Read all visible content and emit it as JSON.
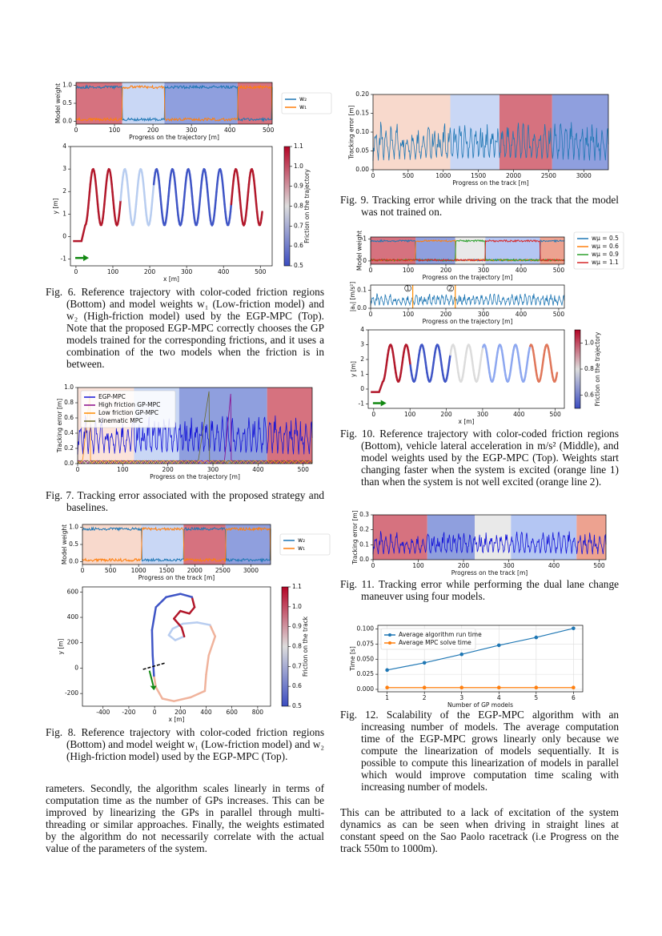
{
  "figures": [
    {
      "caption": "Fig. 6. Reference trajectory with color-coded friction regions (Bottom) and model weights w₁ (Low-friction model) and w₂ (High-friction model) used by the EGP-MPC (Top). Note that the proposed EGP-MPC correctly chooses the GP models trained for the corresponding frictions, and it uses a combination of the two models when the friction is in between.",
      "panels": [
        {
          "kind": "weights",
          "xlabel": "Progress on the trajectory [m]",
          "ylabel": "Model weight",
          "xlim": [
            0,
            510
          ],
          "ylim": [
            -0.08,
            1.08
          ],
          "xticks": [
            0,
            100,
            200,
            300,
            400,
            500
          ],
          "yticks": [
            {
              "value": 0,
              "label": "0.0"
            },
            0.5,
            {
              "value": 1,
              "label": "1.0"
            }
          ],
          "regions": [
            {
              "range": [
                0,
                120
              ],
              "color": "#d6727f"
            },
            {
              "range": [
                120,
                230
              ],
              "color": "#c9d7f5"
            },
            {
              "range": [
                230,
                420
              ],
              "color": "#8f9fde"
            },
            {
              "range": [
                420,
                510
              ],
              "color": "#d6727f"
            }
          ],
          "legend": "outside-right",
          "series": [
            {
              "name": "w₂",
              "color": "#1f77b4"
            },
            {
              "name": "w₁",
              "color": "#ff7f0e"
            }
          ]
        },
        {
          "kind": "trajectory",
          "xlabel": "x [m]",
          "ylabel": "y [m]",
          "xlim": [
            -15,
            532
          ],
          "ylim": [
            -1.3,
            4
          ],
          "xticks": [
            0,
            100,
            200,
            300,
            400,
            500
          ],
          "yticks": [
            -1,
            0,
            1,
            2,
            3,
            4
          ],
          "friction_segments": [
            {
              "range": [
                0,
                120
              ],
              "color": "#b2182b"
            },
            {
              "range": [
                120,
                210
              ],
              "color": "#b8cdf0"
            },
            {
              "range": [
                210,
                420
              ],
              "color": "#3f55c6"
            },
            {
              "range": [
                420,
                532
              ],
              "color": "#b2182b"
            }
          ],
          "colorbar": {
            "label": "Friction on the trajectory",
            "lim": [
              0.5,
              1.1
            ],
            "ticks": [
              0.5,
              0.6,
              0.7,
              0.8,
              0.9,
              {
                "value": 1,
                "label": "1.0"
              },
              1.1
            ]
          }
        }
      ]
    },
    {
      "caption": "Fig. 7. Tracking error associated with the proposed strategy and baselines.",
      "panels": [
        {
          "kind": "error",
          "xlabel": "Progress on the trajectory [m]",
          "ylabel": "Tracking error [m]",
          "xlim": [
            0,
            520
          ],
          "ylim": [
            0,
            1
          ],
          "xticks": [
            0,
            100,
            200,
            300,
            400,
            500
          ],
          "yticks": [
            {
              "value": 0,
              "label": "0.0"
            },
            0.2,
            0.4,
            0.6,
            0.8,
            {
              "value": 1,
              "label": "1.0"
            }
          ],
          "regions": [
            {
              "range": [
                0,
                125
              ],
              "color": "#fbe3da"
            },
            {
              "range": [
                125,
                225
              ],
              "color": "#c9d7f5"
            },
            {
              "range": [
                225,
                420
              ],
              "color": "#8f9fde"
            },
            {
              "range": [
                420,
                520
              ],
              "color": "#d6727f"
            }
          ],
          "legend": "upper-left",
          "series": [
            {
              "name": "EGP-MPC",
              "color": "#1414d8"
            },
            {
              "name": "High friction GP-MPC",
              "color": "#8b0a8b"
            },
            {
              "name": "Low friction GP-MPC",
              "color": "#ff8c00"
            },
            {
              "name": "kinematic MPC",
              "color": "#6b6b2a"
            }
          ]
        }
      ]
    },
    {
      "caption": "Fig. 8. Reference trajectory with color-coded friction regions (Bottom) and model weight w₁ (Low-friction model) and w₂ (High-friction model) used by the EGP-MPC (Top).",
      "panels": [
        {
          "kind": "weights",
          "xlabel": "Progress on the track [m]",
          "ylabel": "Model weight",
          "xlim": [
            0,
            3350
          ],
          "ylim": [
            -0.08,
            1.08
          ],
          "xticks": [
            0,
            500,
            1000,
            1500,
            2000,
            2500,
            3000
          ],
          "yticks": [
            {
              "value": 0,
              "label": "0.0"
            },
            0.5,
            {
              "value": 1,
              "label": "1.0"
            }
          ],
          "regions": [
            {
              "range": [
                0,
                1050
              ],
              "color": "#f8d9cc"
            },
            {
              "range": [
                1050,
                1800
              ],
              "color": "#c9d7f5"
            },
            {
              "range": [
                1800,
                2550
              ],
              "color": "#d6727f"
            },
            {
              "range": [
                2550,
                3350
              ],
              "color": "#8f9fde"
            }
          ],
          "legend": "outside-right",
          "series": [
            {
              "name": "w₂",
              "color": "#1f77b4"
            },
            {
              "name": "w₁",
              "color": "#ff7f0e"
            }
          ]
        },
        {
          "kind": "track",
          "xlabel": "x [m]",
          "ylabel": "y [m]",
          "xlim": [
            -560,
            900
          ],
          "ylim": [
            -300,
            640
          ],
          "xticks": [
            -400,
            -200,
            0,
            200,
            400,
            600,
            800
          ],
          "yticks": [
            -200,
            0,
            200,
            400,
            600
          ],
          "friction_segments": [
            {
              "range": [
                0,
                1050
              ],
              "color": "#f0b39c"
            },
            {
              "range": [
                1050,
                1800
              ],
              "color": "#b8cdf0"
            },
            {
              "range": [
                1800,
                2550
              ],
              "color": "#b2182b"
            },
            {
              "range": [
                2550,
                3350
              ],
              "color": "#3f55c6"
            }
          ],
          "colorbar": {
            "label": "Friction on the track",
            "lim": [
              0.5,
              1.1
            ],
            "ticks": [
              0.5,
              0.6,
              0.7,
              0.8,
              0.9,
              {
                "value": 1,
                "label": "1.0"
              },
              1.1
            ]
          }
        }
      ]
    },
    {
      "caption": "Fig. 9. Tracking error while driving on the track that the model was not trained on.",
      "panels": [
        {
          "kind": "error",
          "xlabel": "Progress on the track [m]",
          "ylabel": "Tracking error [m]",
          "xlim": [
            0,
            3350
          ],
          "ylim": [
            0,
            0.2
          ],
          "xticks": [
            0,
            500,
            1000,
            1500,
            2000,
            2500,
            3000
          ],
          "yticks": [
            {
              "value": 0,
              "label": "0.00"
            },
            0.05,
            {
              "value": 0.1,
              "label": "0.10"
            },
            0.15,
            {
              "value": 0.2,
              "label": "0.20"
            }
          ],
          "regions": [
            {
              "range": [
                0,
                1100
              ],
              "color": "#f8d9cc"
            },
            {
              "range": [
                1100,
                1800
              ],
              "color": "#c9d7f5"
            },
            {
              "range": [
                1800,
                2550
              ],
              "color": "#d6727f"
            },
            {
              "range": [
                2550,
                3350
              ],
              "color": "#8f9fde"
            }
          ],
          "color": "#1f77b4"
        }
      ]
    },
    {
      "caption": "Fig. 10. Reference trajectory with color-coded friction regions (Bottom), vehicle lateral acceleration in m/s² (Middle), and model weights used by the EGP-MPC (Top). Weights start changing faster when the system is excited (orange line 1) than when the system is not well excited (orange line 2).",
      "panels": [
        {
          "kind": "weights",
          "xlabel": "Progress on the trajectory [m]",
          "ylabel": "Model weight",
          "xlim": [
            0,
            515
          ],
          "ylim": [
            -0.15,
            1.1
          ],
          "xticks": [
            0,
            100,
            200,
            300,
            400,
            500
          ],
          "yticks": [
            0,
            1
          ],
          "regions": [
            {
              "range": [
                0,
                120
              ],
              "color": "#d6727f"
            },
            {
              "range": [
                120,
                225
              ],
              "color": "#8f9fde"
            },
            {
              "range": [
                225,
                305
              ],
              "color": "#e9e9e9"
            },
            {
              "range": [
                305,
                450
              ],
              "color": "#b4c6f3"
            },
            {
              "range": [
                450,
                515
              ],
              "color": "#eda290"
            }
          ],
          "legend": "outside-right",
          "series": [
            {
              "name": "wμ = 0.5",
              "color": "#1f77b4"
            },
            {
              "name": "wμ = 0.6",
              "color": "#ff7f0e"
            },
            {
              "name": "wμ = 0.9",
              "color": "#2ca02c"
            },
            {
              "name": "wμ = 1.1",
              "color": "#d62728"
            }
          ]
        },
        {
          "kind": "error",
          "xlabel": "Progress on the trajectory [m]",
          "ylabel": "|aᵧ| [m/s²]",
          "xlim": [
            0,
            515
          ],
          "ylim": [
            0,
            0.13
          ],
          "xticks": [
            0,
            100,
            200,
            300,
            400,
            500
          ],
          "yticks": [
            {
              "value": 0,
              "label": "0.0"
            },
            0.1
          ],
          "color": "#1f77b4",
          "markers": [
            {
              "x": 112,
              "label": "1"
            },
            {
              "x": 225,
              "label": "2"
            }
          ]
        },
        {
          "kind": "trajectory",
          "xlabel": "x [m]",
          "ylabel": "y [m]",
          "xlim": [
            -15,
            525
          ],
          "ylim": [
            -1.3,
            4
          ],
          "xticks": [
            0,
            100,
            200,
            300,
            400,
            500
          ],
          "yticks": [
            -1,
            0,
            1,
            2,
            3,
            4
          ],
          "friction_segments": [
            {
              "range": [
                0,
                100
              ],
              "color": "#b2182b"
            },
            {
              "range": [
                100,
                210
              ],
              "color": "#3f55c6"
            },
            {
              "range": [
                210,
                300
              ],
              "color": "#dcdcdc"
            },
            {
              "range": [
                300,
                430
              ],
              "color": "#8ea8f0"
            },
            {
              "range": [
                430,
                525
              ],
              "color": "#e0775a"
            }
          ],
          "colorbar": {
            "label": "Friction on the trajectory",
            "lim": [
              0.5,
              1.1
            ],
            "ticks": [
              0.6,
              0.8,
              {
                "value": 1,
                "label": "1.0"
              }
            ]
          }
        }
      ]
    },
    {
      "caption": "Fig. 11. Tracking error while performing the dual lane change maneuver using four models.",
      "panels": [
        {
          "kind": "error",
          "xlabel": "Progress on the track [m]",
          "ylabel": "Tracking error [m]",
          "xlim": [
            0,
            515
          ],
          "ylim": [
            0,
            0.3
          ],
          "xticks": [
            0,
            100,
            200,
            300,
            400,
            500
          ],
          "yticks": [
            {
              "value": 0,
              "label": "0.0"
            },
            0.1,
            0.2,
            0.3
          ],
          "regions": [
            {
              "range": [
                0,
                120
              ],
              "color": "#d6727f"
            },
            {
              "range": [
                120,
                225
              ],
              "color": "#8f9fde"
            },
            {
              "range": [
                225,
                305
              ],
              "color": "#e9e9e9"
            },
            {
              "range": [
                305,
                450
              ],
              "color": "#b4c6f3"
            },
            {
              "range": [
                450,
                515
              ],
              "color": "#eda290"
            }
          ],
          "color": "#1414d8"
        }
      ]
    },
    {
      "caption": "Fig. 12. Scalability of the EGP-MPC algorithm with an increasing number of models. The average computation time of the EGP-MPC grows linearly only because we compute the linearization of models sequentially. It is possible to compute this linearization of models in parallel which would improve computation time scaling with increasing number of models.",
      "panels": [
        {
          "kind": "line",
          "xlabel": "Number of GP models",
          "ylabel": "Time [s]",
          "xlim": [
            0.75,
            6.25
          ],
          "ylim": [
            -0.004,
            0.106
          ],
          "xticks": [
            1,
            2,
            3,
            4,
            5,
            6
          ],
          "yticks": [
            {
              "value": 0,
              "label": "0.000"
            },
            0.025,
            {
              "value": 0.05,
              "label": "0.050"
            },
            0.075,
            {
              "value": 0.1,
              "label": "0.100"
            }
          ],
          "grid": true,
          "legend": "upper-left",
          "x": [
            1,
            2,
            3,
            4,
            5,
            6
          ],
          "series": [
            {
              "name": "Average algorithm run time",
              "color": "#1f77b4",
              "values": [
                0.032,
                0.044,
                0.058,
                0.073,
                0.086,
                0.101
              ]
            },
            {
              "name": "Average MPC solve time",
              "color": "#ff7f0e",
              "values": [
                0.003,
                0.003,
                0.003,
                0.003,
                0.003,
                0.003
              ]
            }
          ]
        }
      ]
    }
  ],
  "body": {
    "left": "rameters. Secondly, the algorithm scales linearly in terms of computation time as the number of GPs increases. This can be improved by linearizing the GPs in parallel through multi-threading or similar approaches. Finally, the weights estimated by the algorithm do not necessarily correlate with the actual value of the parameters of the system.",
    "right": "This can be attributed to a lack of excitation of the system dynamics as can be seen when driving in straight lines at constant speed on the Sao Paolo racetrack (i.e Progress on the track 550m to 1000m)."
  }
}
